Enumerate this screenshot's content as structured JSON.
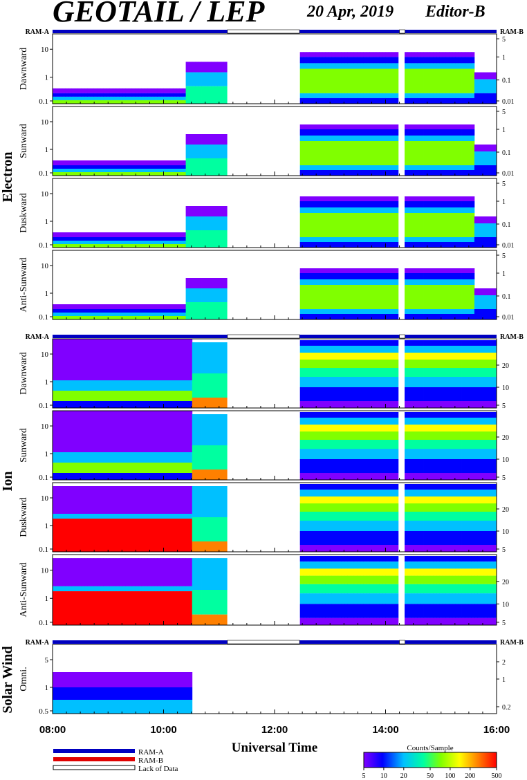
{
  "header": {
    "title": "GEOTAIL / LEP",
    "date": "20 Apr, 2019",
    "editor": "Editor-B"
  },
  "ram": {
    "left_label": "RAM-A",
    "right_label": "RAM-B"
  },
  "groups": {
    "electron": "Electron",
    "ion": "Ion",
    "solar_wind": "Solar Wind"
  },
  "chart_data": {
    "type": "heatmap",
    "xlabel": "Universal Time",
    "x_ticks": [
      "08:00",
      "10:00",
      "12:00",
      "14:00",
      "16:00"
    ],
    "x_range_hours": [
      8,
      16
    ],
    "colorbar": {
      "title": "Counts/Sample",
      "ticks": [
        "5",
        "10",
        "20",
        "50",
        "100",
        "200",
        "500"
      ],
      "range": [
        5,
        500
      ],
      "scale": "log",
      "colors": [
        "#8000ff",
        "#0000ff",
        "#00c0ff",
        "#00ffa0",
        "#80ff00",
        "#ffff00",
        "#ff8000",
        "#ff0000"
      ]
    },
    "data_gaps_hours": [
      [
        11.15,
        12.45
      ],
      [
        14.25,
        14.35
      ]
    ],
    "panels": [
      {
        "group": "electron",
        "label": "Dawnward",
        "left_ticks": [
          "10",
          "1",
          "0.1"
        ],
        "right_ticks": [
          "5",
          "1",
          "0.1",
          "0.01"
        ]
      },
      {
        "group": "electron",
        "label": "Sunward",
        "left_ticks": [
          "10",
          "1",
          "0.1"
        ],
        "right_ticks": [
          "5",
          "1",
          "0.1",
          "0.01"
        ]
      },
      {
        "group": "electron",
        "label": "Duskward",
        "left_ticks": [
          "10",
          "1",
          "0.1"
        ],
        "right_ticks": [
          "5",
          "1",
          "0.1",
          "0.01"
        ]
      },
      {
        "group": "electron",
        "label": "Anti-Sunward",
        "left_ticks": [
          "10",
          "1",
          "0.1"
        ],
        "right_ticks": [
          "5",
          "1",
          "0.1",
          "0.01"
        ]
      },
      {
        "group": "ion",
        "label": "Dawnward",
        "left_ticks": [
          "10",
          "1",
          "0.1"
        ],
        "right_ticks": [
          "20",
          "10",
          "5"
        ]
      },
      {
        "group": "ion",
        "label": "Sunward",
        "left_ticks": [
          "10",
          "1",
          "0.1"
        ],
        "right_ticks": [
          "20",
          "10",
          "5"
        ]
      },
      {
        "group": "ion",
        "label": "Duskward",
        "left_ticks": [
          "10",
          "1",
          "0.1"
        ],
        "right_ticks": [
          "20",
          "10",
          "5"
        ]
      },
      {
        "group": "ion",
        "label": "Anti-Sunward",
        "left_ticks": [
          "10",
          "1",
          "0.1"
        ],
        "right_ticks": [
          "20",
          "10",
          "5"
        ]
      },
      {
        "group": "solar_wind",
        "label": "Omni.",
        "left_ticks": [
          "5",
          "1",
          "0.5"
        ],
        "right_ticks": [
          "2",
          "1",
          "0.2"
        ]
      }
    ]
  },
  "legend": {
    "items": [
      {
        "label": "RAM-A",
        "color": "#0000c0"
      },
      {
        "label": "RAM-B",
        "color": "#e00000"
      },
      {
        "label": "Lack of Data",
        "color": "#ffffff"
      }
    ]
  }
}
